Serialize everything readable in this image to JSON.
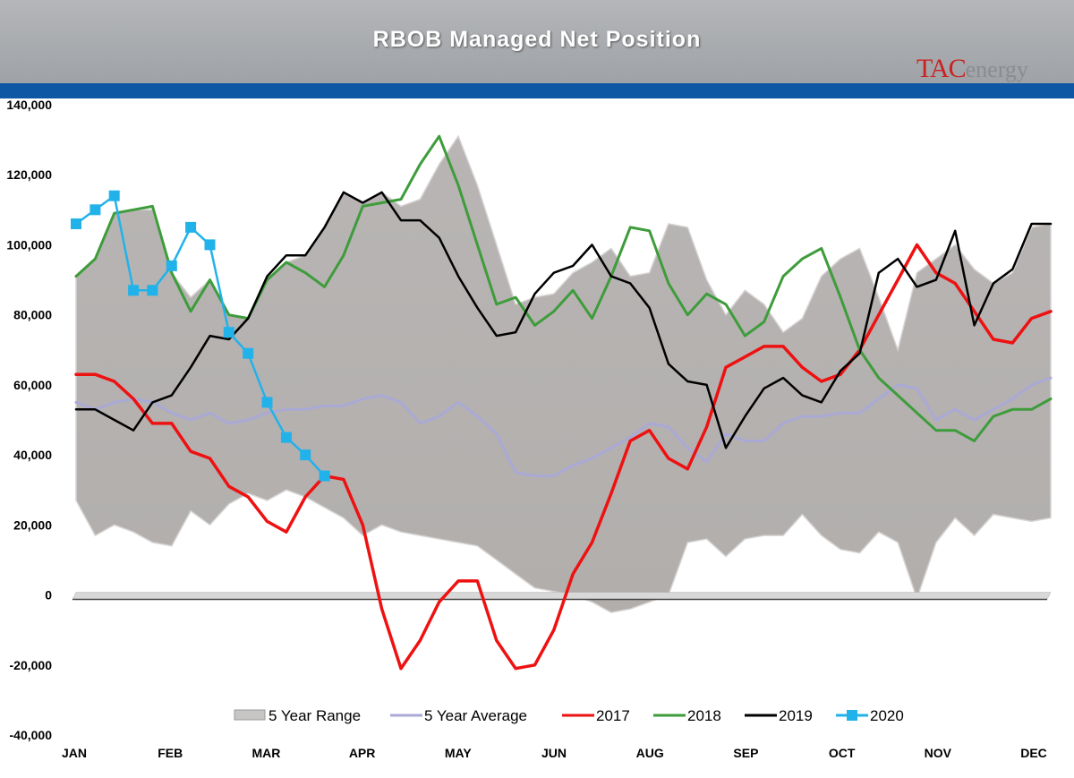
{
  "title": "RBOB Managed Net Position",
  "logo": {
    "part1": "TAC",
    "part2": "energy"
  },
  "chart_data": {
    "type": "line",
    "title": "RBOB Managed Net Position",
    "ylim": [
      -40000,
      140000
    ],
    "y_ticks": [
      140000,
      120000,
      100000,
      80000,
      60000,
      40000,
      20000,
      0,
      -20000,
      -40000
    ],
    "y_tick_labels": [
      "140,000",
      "120,000",
      "100,000",
      "80,000",
      "60,000",
      "40,000",
      "20,000",
      "0",
      "-20,000",
      "-40,000"
    ],
    "month_labels": [
      "JAN",
      "FEB",
      "MAR",
      "APR",
      "MAY",
      "JUN",
      "AUG",
      "SEP",
      "OCT",
      "NOV",
      "DEC"
    ],
    "x_weeks": [
      1,
      2,
      3,
      4,
      5,
      6,
      7,
      8,
      9,
      10,
      11,
      12,
      13,
      14,
      15,
      16,
      17,
      18,
      19,
      20,
      21,
      22,
      23,
      24,
      25,
      26,
      27,
      28,
      29,
      30,
      31,
      32,
      33,
      34,
      35,
      36,
      37,
      38,
      39,
      40,
      41,
      42,
      43,
      44,
      45,
      46,
      47,
      48,
      49,
      50,
      51,
      52
    ],
    "range": {
      "name": "5 Year Range",
      "max": [
        91000,
        96000,
        109000,
        110000,
        110000,
        92000,
        85000,
        90000,
        80000,
        79000,
        90000,
        95000,
        97000,
        105000,
        115000,
        112000,
        115000,
        111000,
        113000,
        123000,
        131000,
        117000,
        100000,
        83000,
        85000,
        86000,
        92000,
        95000,
        99000,
        91000,
        92000,
        106000,
        105000,
        90000,
        80000,
        87000,
        83000,
        75000,
        79000,
        91000,
        96000,
        99000,
        85000,
        70000,
        92000,
        96000,
        100000,
        93000,
        89000,
        92000,
        105000,
        106000
      ],
      "min": [
        27000,
        17000,
        20000,
        18000,
        15000,
        14000,
        24000,
        20000,
        26000,
        29000,
        27000,
        30000,
        28000,
        25000,
        22000,
        17000,
        20000,
        18000,
        17000,
        16000,
        15000,
        14000,
        10000,
        6000,
        2000,
        1000,
        0,
        -2000,
        -5000,
        -4000,
        -2000,
        0,
        15000,
        16000,
        11000,
        16000,
        17000,
        17000,
        23000,
        17000,
        13000,
        12000,
        18000,
        15000,
        -1000,
        15000,
        22000,
        17000,
        23000,
        22000,
        21000,
        22000
      ]
    },
    "series": [
      {
        "name": "5 Year Average",
        "color": "#aaa9d6",
        "x": [
          1,
          2,
          3,
          4,
          5,
          6,
          7,
          8,
          9,
          10,
          11,
          12,
          13,
          14,
          15,
          16,
          17,
          18,
          19,
          20,
          21,
          22,
          23,
          24,
          25,
          26,
          27,
          28,
          29,
          30,
          31,
          32,
          33,
          34,
          35,
          36,
          37,
          38,
          39,
          40,
          41,
          42,
          43,
          44,
          45,
          46,
          47,
          48,
          49,
          50,
          51,
          52
        ],
        "values": [
          55000,
          53000,
          55000,
          56000,
          55000,
          52000,
          50000,
          52000,
          49000,
          50000,
          52000,
          53000,
          53000,
          54000,
          54000,
          56000,
          57000,
          55000,
          49000,
          51000,
          55000,
          51000,
          46000,
          35000,
          34000,
          34000,
          37000,
          39000,
          42000,
          45000,
          49000,
          48000,
          42000,
          38000,
          46000,
          44000,
          44000,
          49000,
          51000,
          51000,
          52000,
          52000,
          56000,
          60000,
          59000,
          50000,
          53000,
          50000,
          53000,
          56000,
          60000,
          62000
        ]
      },
      {
        "name": "2017",
        "color": "#ee1111",
        "x": [
          1,
          2,
          3,
          4,
          5,
          6,
          7,
          8,
          9,
          10,
          11,
          12,
          13,
          14,
          15,
          16,
          17,
          18,
          19,
          20,
          21,
          22,
          23,
          24,
          25,
          26,
          27,
          28,
          29,
          30,
          31,
          32,
          33,
          34,
          35,
          36,
          37,
          38,
          39,
          40,
          41,
          42,
          43,
          44,
          45,
          46,
          47,
          48,
          49,
          50,
          51,
          52
        ],
        "values": [
          63000,
          63000,
          61000,
          56000,
          49000,
          49000,
          41000,
          39000,
          31000,
          28000,
          21000,
          18000,
          28000,
          34000,
          33000,
          20000,
          -4000,
          -21000,
          -13000,
          -2000,
          4000,
          4000,
          -13000,
          -21000,
          -20000,
          -10000,
          6000,
          15000,
          29000,
          44000,
          47000,
          39000,
          36000,
          48000,
          65000,
          68000,
          71000,
          71000,
          65000,
          61000,
          63000,
          70000,
          80000,
          90000,
          100000,
          92000,
          89000,
          81000,
          73000,
          72000,
          79000,
          81000
        ]
      },
      {
        "name": "2018",
        "color": "#3e9c3b",
        "x": [
          1,
          2,
          3,
          4,
          5,
          6,
          7,
          8,
          9,
          10,
          11,
          12,
          13,
          14,
          15,
          16,
          17,
          18,
          19,
          20,
          21,
          22,
          23,
          24,
          25,
          26,
          27,
          28,
          29,
          30,
          31,
          32,
          33,
          34,
          35,
          36,
          37,
          38,
          39,
          40,
          41,
          42,
          43,
          44,
          45,
          46,
          47,
          48,
          49,
          50,
          51,
          52
        ],
        "values": [
          91000,
          96000,
          109000,
          110000,
          111000,
          92000,
          81000,
          90000,
          80000,
          79000,
          90000,
          95000,
          92000,
          88000,
          97000,
          111000,
          112000,
          113000,
          123000,
          131000,
          117000,
          100000,
          83000,
          85000,
          77000,
          81000,
          87000,
          79000,
          91000,
          105000,
          104000,
          89000,
          80000,
          86000,
          83000,
          74000,
          78000,
          91000,
          96000,
          99000,
          85000,
          70000,
          62000,
          57000,
          52000,
          47000,
          47000,
          44000,
          51000,
          53000,
          53000,
          56000
        ]
      },
      {
        "name": "2019",
        "color": "#000000",
        "x": [
          1,
          2,
          3,
          4,
          5,
          6,
          7,
          8,
          9,
          10,
          11,
          12,
          13,
          14,
          15,
          16,
          17,
          18,
          19,
          20,
          21,
          22,
          23,
          24,
          25,
          26,
          27,
          28,
          29,
          30,
          31,
          32,
          33,
          34,
          35,
          36,
          37,
          38,
          39,
          40,
          41,
          42,
          43,
          44,
          45,
          46,
          47,
          48,
          49,
          50,
          51,
          52
        ],
        "values": [
          53000,
          53000,
          50000,
          47000,
          55000,
          57000,
          65000,
          74000,
          73000,
          79000,
          91000,
          97000,
          97000,
          105000,
          115000,
          112000,
          115000,
          107000,
          107000,
          102000,
          91000,
          82000,
          74000,
          75000,
          86000,
          92000,
          94000,
          100000,
          91000,
          89000,
          82000,
          66000,
          61000,
          60000,
          42000,
          51000,
          59000,
          62000,
          57000,
          55000,
          64000,
          69000,
          92000,
          96000,
          88000,
          90000,
          104000,
          77000,
          89000,
          93000,
          106000,
          106000
        ]
      },
      {
        "name": "2020",
        "color": "#22b2ea",
        "x": [
          1,
          2,
          3,
          4,
          5,
          6,
          7,
          8,
          9,
          10,
          11,
          12,
          13,
          14
        ],
        "values": [
          106000,
          110000,
          114000,
          87000,
          87000,
          94000,
          105000,
          100000,
          75000,
          69000,
          55000,
          45000,
          40000,
          34000
        ]
      }
    ],
    "legend": {
      "position": "bottom",
      "entries": [
        "5 Year Range",
        "5 Year Average",
        "2017",
        "2018",
        "2019",
        "2020"
      ]
    }
  }
}
